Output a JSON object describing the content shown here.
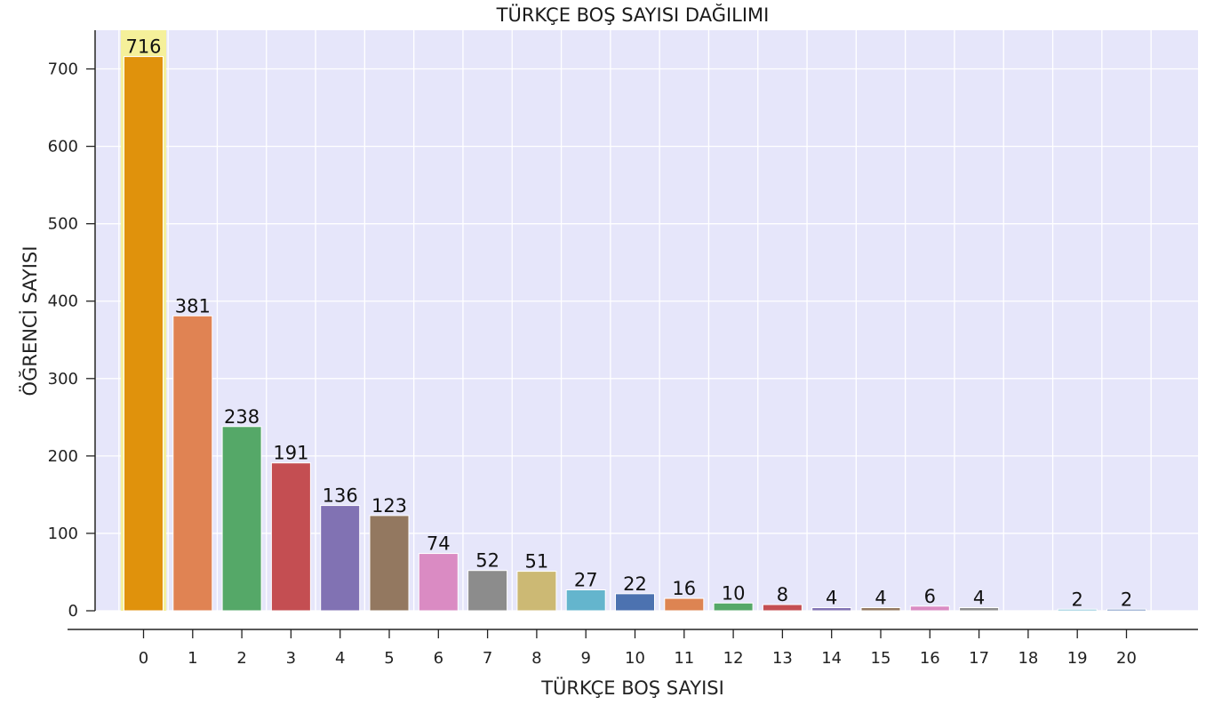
{
  "chart_data": {
    "type": "bar",
    "title": "TÜRKÇE BOŞ SAYISI DAĞILIMI",
    "xlabel": "TÜRKÇE BOŞ SAYISI",
    "ylabel": "ÖĞRENCİ SAYISI",
    "categories": [
      "0",
      "1",
      "2",
      "3",
      "4",
      "5",
      "6",
      "7",
      "8",
      "9",
      "10",
      "11",
      "12",
      "13",
      "14",
      "15",
      "16",
      "17",
      "18",
      "19",
      "20"
    ],
    "values": [
      716,
      381,
      238,
      191,
      136,
      123,
      74,
      52,
      51,
      27,
      22,
      16,
      10,
      8,
      4,
      4,
      6,
      4,
      0,
      2,
      2
    ],
    "data_labels": [
      "716",
      "381",
      "238",
      "191",
      "136",
      "123",
      "74",
      "52",
      "51",
      "27",
      "22",
      "16",
      "10",
      "8",
      "4",
      "4",
      "6",
      "4",
      "",
      "2",
      "2"
    ],
    "yticks": [
      "0",
      "100",
      "200",
      "300",
      "400",
      "500",
      "600",
      "700"
    ],
    "ylim": [
      0,
      750
    ],
    "grid": true,
    "highlight_category": "0",
    "colors": {
      "plot_background": "#e6e6fa",
      "grid": "#ffffff",
      "highlight": "#f5f09a",
      "bars": [
        "#e0920c",
        "#e08353",
        "#55a868",
        "#c44e52",
        "#8172b3",
        "#937860",
        "#da8bc3",
        "#8c8c8c",
        "#ccb974",
        "#64b5cd",
        "#4c72b0",
        "#dd8452",
        "#55a868",
        "#c44e52",
        "#8172b3",
        "#937860",
        "#da8bc3",
        "#8c8c8c",
        "#ccb974",
        "#64b5cd",
        "#4c72b0"
      ]
    }
  }
}
